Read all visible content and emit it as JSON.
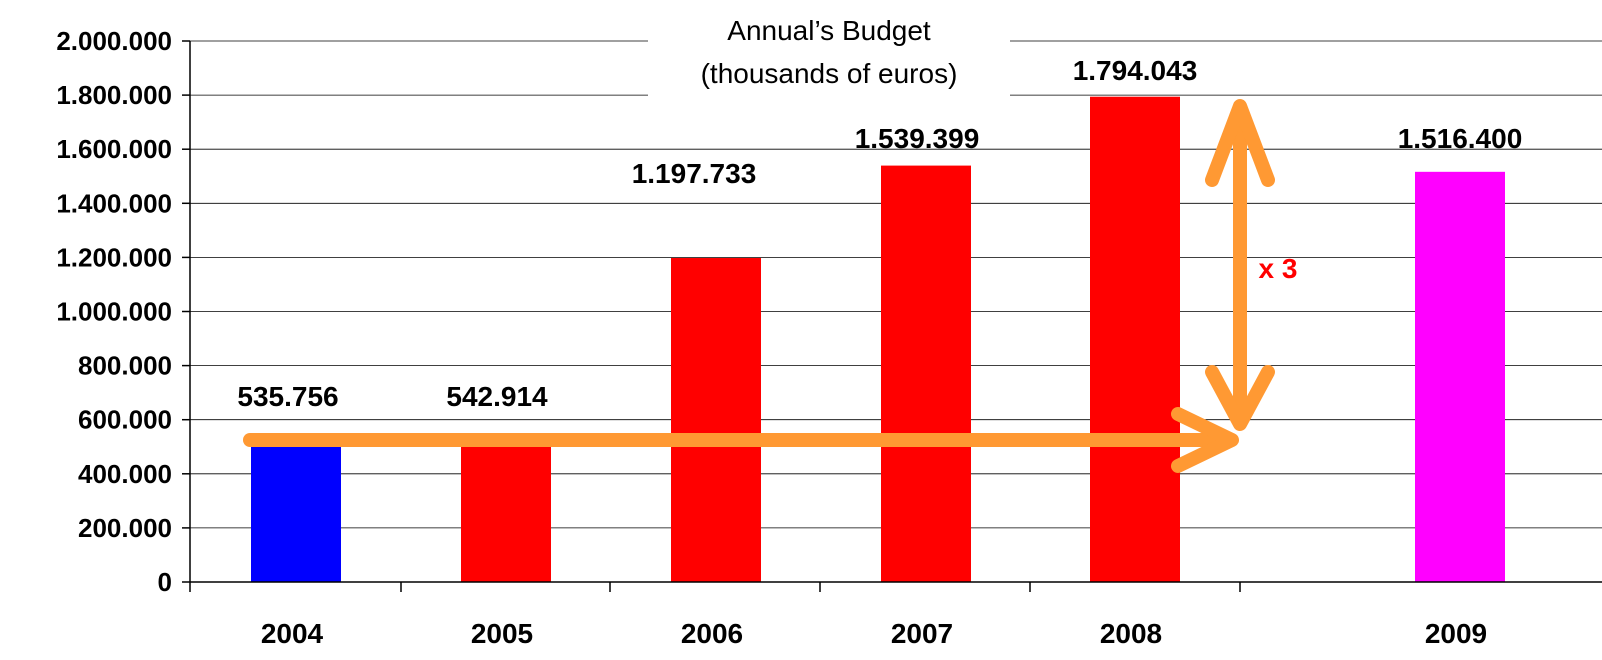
{
  "chart_data": {
    "type": "bar",
    "title": "Annual’s Budget",
    "subtitle": "(thousands of euros)",
    "categories": [
      "2004",
      "2005",
      "2006",
      "2007",
      "2008",
      "2009"
    ],
    "values": [
      535756,
      542914,
      1197733,
      1539399,
      1794043,
      1516400
    ],
    "value_labels": [
      "535.756",
      "542.914",
      "1.197.733",
      "1.539.399",
      "1.794.043",
      "1.516.400"
    ],
    "bar_colors": [
      "#0000ff",
      "#ff0000",
      "#ff0000",
      "#ff0000",
      "#ff0000",
      "#ff00ff"
    ],
    "ylim": [
      0,
      2000000
    ],
    "yticks": [
      0,
      200000,
      400000,
      600000,
      800000,
      1000000,
      1200000,
      1400000,
      1600000,
      1800000,
      2000000
    ],
    "ytick_labels": [
      "0",
      "200.000",
      "400.000",
      "600.000",
      "800.000",
      "1.000.000",
      "1.200.000",
      "1.400.000",
      "1.600.000",
      "1.800.000",
      "2.000.000"
    ],
    "xlabel": "",
    "ylabel": "",
    "grid": true,
    "annotation": {
      "text": "x 3",
      "color": "#ff0000",
      "arrow_color": "#ff9933"
    }
  }
}
